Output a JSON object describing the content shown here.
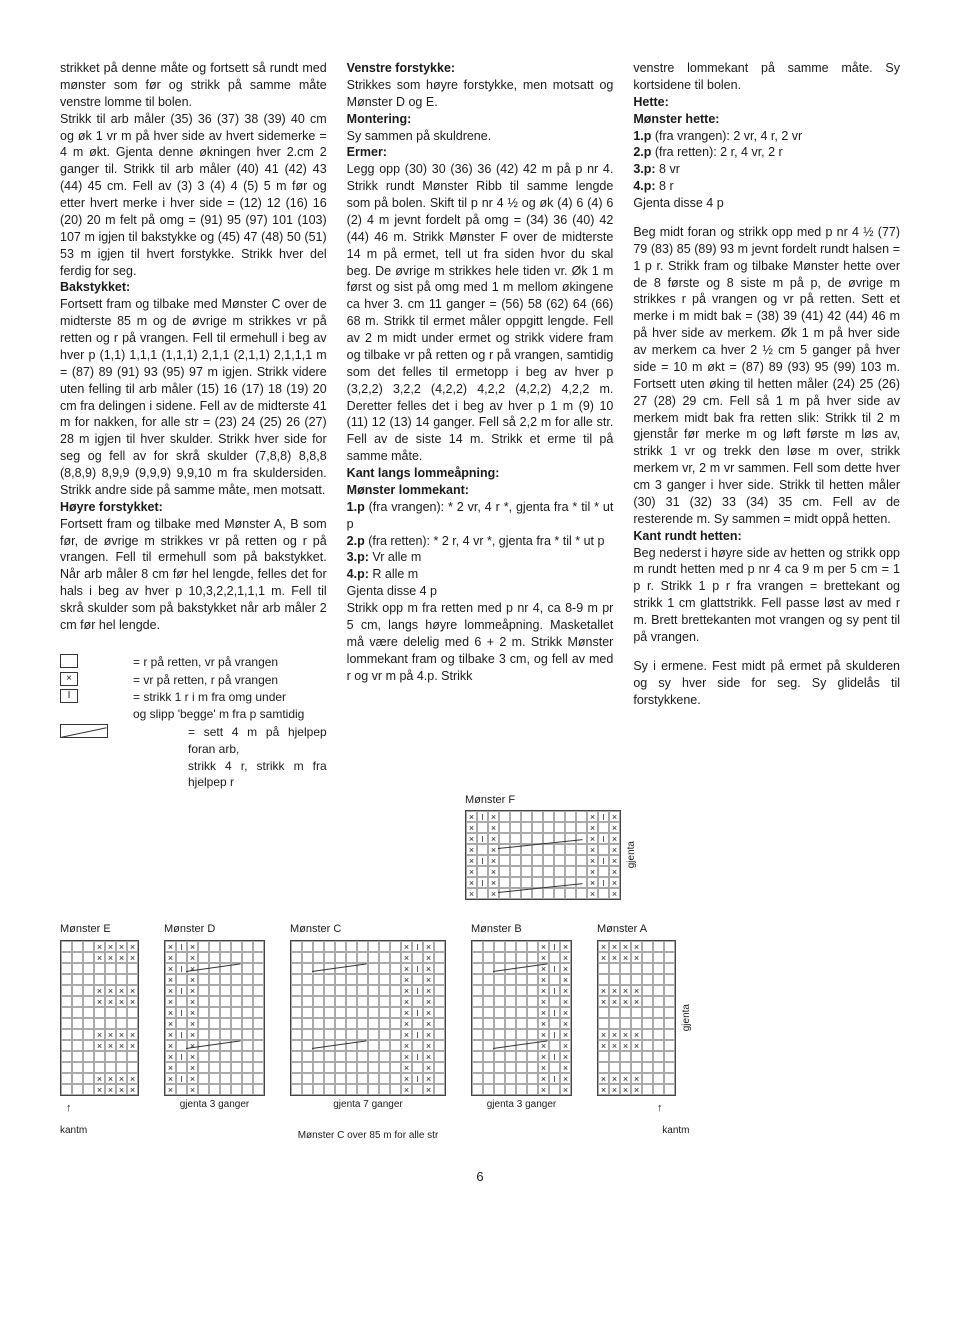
{
  "col1": {
    "p1": "strikket på denne måte og fortsett så rundt med mønster som før og strikk på samme måte venstre lomme til bolen.",
    "p2": "Strikk til arb måler (35) 36 (37) 38 (39) 40 cm og øk 1 vr m på hver side av hvert sidemerke = 4 m økt. Gjenta denne økningen hver 2.cm 2 ganger til. Strikk til arb måler (40) 41 (42) 43 (44) 45 cm. Fell av (3) 3 (4) 4 (5) 5 m før og etter hvert merke i hver side = (12) 12 (16) 16 (20) 20 m felt på omg = (91) 95 (97) 101 (103) 107 m igjen til bakstykke og (45) 47 (48) 50 (51) 53 m igjen til hvert forstykke. Strikk hver del ferdig for seg.",
    "h_bak": "Bakstykket:",
    "p3": "Fortsett fram og tilbake med Mønster C over de midterste 85 m og de øvrige m strikkes vr på retten og r på vrangen. Fell til ermehull i beg av hver p (1,1) 1,1,1 (1,1,1) 2,1,1 (2,1,1) 2,1,1,1 m = (87) 89 (91) 93 (95) 97 m igjen. Strikk videre uten felling til arb måler (15) 16 (17) 18 (19) 20 cm fra delingen i sidene. Fell av de midterste 41 m for nakken, for alle str = (23) 24 (25) 26 (27) 28 m igjen til hver skulder. Strikk hver side for seg og fell av for skrå skulder (7,8,8) 8,8,8 (8,8,9) 8,9,9 (9,9,9) 9,9,10 m fra skuldersiden. Strikk andre side på samme måte, men motsatt.",
    "h_hoyre": "Høyre forstykket:",
    "p4": "Fortsett fram og tilbake med Mønster A, B som før, de øvrige m strikkes vr på retten og r på vrangen. Fell til ermehull som på bakstykket. Når arb måler 8 cm før hel lengde, felles det for hals i beg av hver p 10,3,2,2,1,1,1 m.  Fell til skrå skulder som på bakstykket når arb måler 2 cm før hel lengde."
  },
  "col2": {
    "h_venstre": "Venstre forstykke:",
    "p1": "Strikkes som høyre forstykke, men motsatt og Mønster D og E.",
    "h_mont": "Montering:",
    "p2": "Sy sammen på skuldrene.",
    "h_ermer": "Ermer:",
    "p3": "Legg opp (30) 30 (36) 36 (42) 42 m på p nr 4. Strikk rundt Mønster Ribb til samme lengde som på bolen. Skift til p nr 4 ½ og øk (4) 6 (4) 6 (2) 4 m jevnt fordelt på omg = (34) 36 (40) 42 (44) 46 m.  Strikk Mønster F over de midterste 14 m på ermet, tell ut fra siden hvor du skal beg. De øvrige m strikkes hele tiden vr. Øk 1 m først og sist på omg med 1 m mellom økingene ca hver 3. cm 11 ganger = (56) 58 (62) 64 (66) 68 m. Strikk til ermet måler oppgitt lengde. Fell av 2 m midt under ermet og strikk videre fram og tilbake vr på retten og r på vrangen, samtidig som det felles til ermetopp i beg av hver p (3,2,2) 3,2,2 (4,2,2) 4,2,2 (4,2,2) 4,2,2 m. Deretter felles det i beg av hver p 1 m (9) 10 (11) 12 (13) 14 ganger. Fell så 2,2 m for alle str. Fell av de siste 14 m. Strikk et erme til på samme måte.",
    "h_kant": "Kant langs lommeåpning:",
    "h_mlom": "Mønster lommekant:",
    "p4a": "1.p",
    "p4b": " (fra vrangen): * 2 vr, 4 r *, gjenta fra * til * ut p",
    "p5a": "2.p",
    "p5b": " (fra retten): * 2 r, 4 vr *, gjenta fra * til * ut p",
    "p6a": "3.p:",
    "p6b": " Vr alle m",
    "p7a": "4.p:",
    "p7b": " R alle m",
    "p8": "Gjenta disse 4 p",
    "p9": "Strikk opp m fra retten med p nr 4, ca 8-9 m pr 5 cm, langs høyre lommeåpning. Masketallet må være delelig med 6 + 2 m. Strikk Mønster lommekant fram og tilbake 3 cm, og fell av med r og vr m på 4.p. Strikk"
  },
  "col3": {
    "p1": "venstre lommekant på samme måte. Sy kortsidene til bolen.",
    "h_hette": "Hette:",
    "h_mhette": "Mønster hette:",
    "l1a": "1.p",
    "l1b": " (fra vrangen): 2 vr, 4 r, 2 vr",
    "l2a": "2.p",
    "l2b": " (fra retten): 2 r, 4 vr, 2 r",
    "l3a": "3.p:",
    "l3b": " 8 vr",
    "l4a": "4.p:",
    "l4b": " 8 r",
    "l5": "Gjenta disse 4 p",
    "p2": "Beg midt foran og strikk opp med p nr 4 ½ (77) 79 (83) 85 (89) 93 m jevnt fordelt rundt halsen = 1 p r. Strikk fram og tilbake Mønster hette over de 8 første og 8 siste m på p, de øvrige m strikkes r på vrangen og vr på retten. Sett et merke i m midt bak = (38) 39 (41) 42 (44) 46 m på hver side av merkem. Øk 1 m på hver side av merkem ca hver 2 ½ cm 5 ganger på hver side = 10 m økt = (87) 89 (93) 95 (99) 103 m. Fortsett uten øking til hetten måler (24) 25 (26) 27 (28) 29 cm. Fell så 1 m på hver side av merkem midt bak fra retten slik: Strikk til 2 m gjenstår før merke m og løft første m løs av, strikk 1 vr og trekk den løse m over, strikk merkem vr, 2 m vr sammen. Fell som dette hver cm 3 ganger i hver side. Strikk til hetten måler (30) 31 (32) 33 (34) 35 cm. Fell av de resterende m. Sy sammen = midt oppå hetten.",
    "h_kantrundt": "Kant rundt hetten:",
    "p3": "Beg nederst i høyre side av hetten og strikk opp m rundt hetten med p nr 4 ca 9 m per 5 cm = 1 p r. Strikk 1 p r fra vrangen = brettekant og strikk 1 cm glattstrikk. Fell passe løst av med r m. Brett brettekanten mot vrangen og sy pent til på vrangen.",
    "p4": "Sy i ermene. Fest midt på ermet på skulderen og sy hver side for seg. Sy glidelås til forstykkene."
  },
  "legend": {
    "r1": "= r på retten, vr på vrangen",
    "r2": "= vr på retten, r på vrangen",
    "r3": "= strikk 1 r i m fra omg under",
    "r3b": "   og slipp 'begge' m fra p samtidig",
    "r4": "= sett 4 m på hjelpep foran arb,",
    "r4b": "   strikk 4 r, strikk m fra hjelpep r"
  },
  "chartF": {
    "title": "Mønster F",
    "gjenta": "gjenta",
    "cols": 14,
    "rows": 8
  },
  "charts": {
    "E": {
      "title": "Mønster E",
      "cols": 7,
      "rows": 14,
      "kantm": "kantm"
    },
    "D": {
      "title": "Mønster D",
      "cols": 9,
      "rows": 14,
      "caption": "gjenta 3 ganger"
    },
    "C": {
      "title": "Mønster  C",
      "cols": 14,
      "rows": 14,
      "caption": "gjenta 7 ganger",
      "sub": "Mønster C over 85 m for alle str"
    },
    "B": {
      "title": "Mønster B",
      "cols": 9,
      "rows": 14,
      "caption": "gjenta 3 ganger"
    },
    "A": {
      "title": "Mønster A",
      "cols": 7,
      "rows": 14,
      "kantm": "kantm",
      "gjenta": "gjenta"
    }
  },
  "pageNum": "6",
  "colors": {
    "text": "#1a1a1a",
    "grid": "#aaaaaa",
    "border": "#444444"
  }
}
